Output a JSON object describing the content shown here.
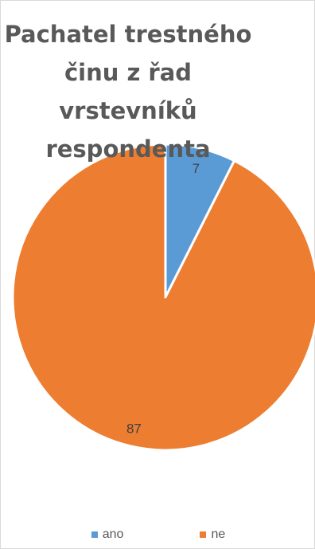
{
  "chart_data": {
    "type": "pie",
    "title_lines": [
      "Pachatel trestného",
      "činu z řad",
      "vrstevníků",
      "respondenta"
    ],
    "categories": [
      "ano",
      "ne"
    ],
    "values": [
      7,
      87
    ],
    "data_labels": [
      "7",
      "87"
    ],
    "colors": [
      "#5b9bd5",
      "#ed7d31"
    ],
    "legend_position": "bottom",
    "start_angle_deg": 0,
    "direction": "clockwise"
  }
}
